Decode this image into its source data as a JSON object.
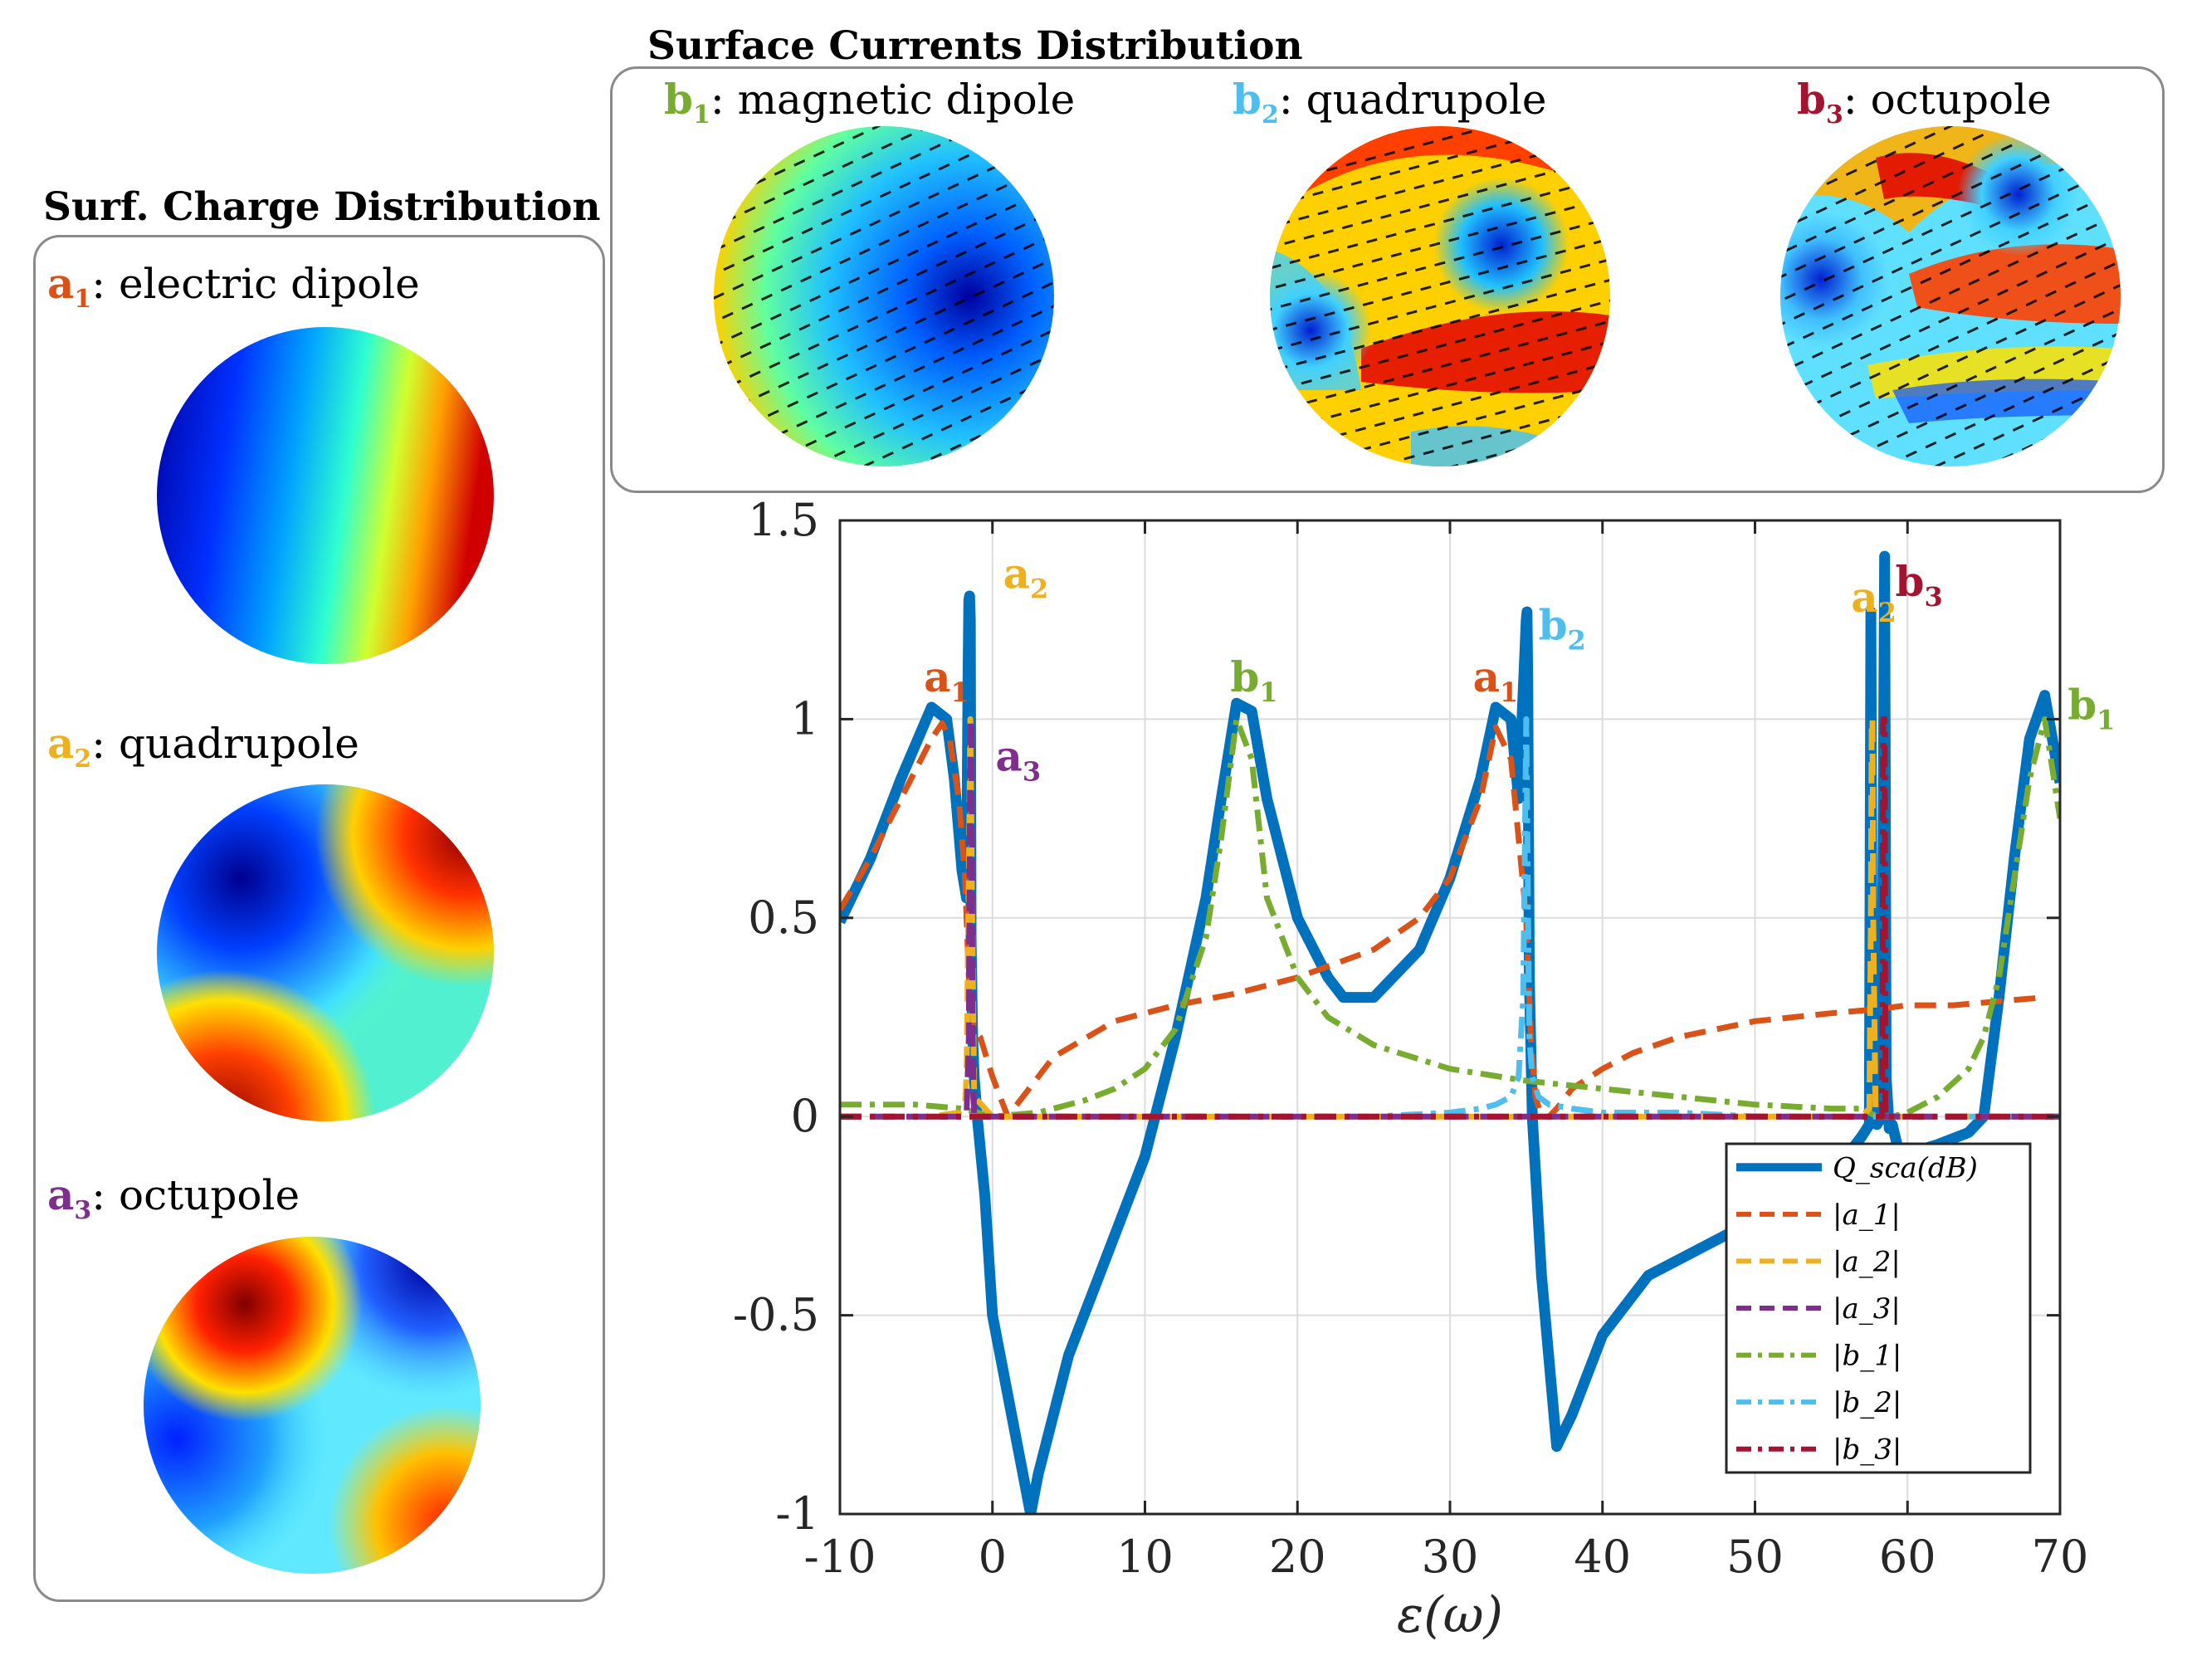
{
  "charge_panel": {
    "title": "Surf. Charge Distribution",
    "items": [
      {
        "sym": "a",
        "sub": "1",
        "desc": ": electric dipole",
        "color": "#d95319"
      },
      {
        "sym": "a",
        "sub": "2",
        "desc": ": quadrupole",
        "color": "#edb120"
      },
      {
        "sym": "a",
        "sub": "3",
        "desc": ": octupole",
        "color": "#7e2f8e"
      }
    ]
  },
  "current_panel": {
    "title": "Surface Currents Distribution",
    "items": [
      {
        "sym": "b",
        "sub": "1",
        "desc": ": magnetic dipole",
        "color": "#77ac30"
      },
      {
        "sym": "b",
        "sub": "2",
        "desc": ": quadrupole",
        "color": "#4dbeee"
      },
      {
        "sym": "b",
        "sub": "3",
        "desc": ": octupole",
        "color": "#a2142f"
      }
    ]
  },
  "chart_data": {
    "type": "line",
    "xlabel": "ε(ω)",
    "ylabel": "",
    "xlim": [
      -10,
      70
    ],
    "ylim": [
      -1,
      1.5
    ],
    "xticks": [
      "-10",
      "0",
      "10",
      "20",
      "30",
      "40",
      "50",
      "60",
      "70"
    ],
    "yticks": [
      "-1",
      "-0.5",
      "0",
      "0.5",
      "1",
      "1.5"
    ],
    "grid": true,
    "legend_position": "bottom-right",
    "series": [
      {
        "name": "Q_sca(dB)",
        "color": "#0072bd",
        "style": "solid",
        "x": [
          -10,
          -8,
          -6,
          -4,
          -3,
          -2.5,
          -2,
          -1.7,
          -1.6,
          -1.55,
          -1.5,
          -1.45,
          -1.4,
          -1.3,
          -1.2,
          -1.0,
          -0.5,
          0,
          2.5,
          3,
          5,
          8,
          10,
          12,
          14,
          15,
          16,
          17,
          18,
          20,
          22,
          23,
          25,
          28,
          30,
          32,
          33,
          34,
          34.5,
          35,
          35.05,
          35.1,
          35.2,
          35.4,
          36,
          37,
          38,
          40,
          43,
          47,
          50,
          53,
          55,
          56,
          57,
          57.5,
          57.6,
          57.7,
          58.0,
          58.3,
          58.5,
          58.6,
          58.8,
          59,
          59.5,
          62,
          64,
          65,
          66,
          67,
          68,
          69,
          69.5,
          70
        ],
        "y": [
          0.49,
          0.65,
          0.85,
          1.03,
          1.0,
          0.85,
          0.62,
          0.55,
          1.1,
          1.3,
          1.31,
          1.25,
          0.45,
          0.2,
          0.1,
          0.0,
          -0.2,
          -0.5,
          -1.0,
          -0.9,
          -0.6,
          -0.3,
          -0.1,
          0.2,
          0.55,
          0.8,
          1.04,
          1.02,
          0.8,
          0.5,
          0.35,
          0.3,
          0.3,
          0.42,
          0.6,
          0.85,
          1.03,
          1.0,
          0.8,
          1.25,
          1.27,
          1.1,
          0.35,
          0.0,
          -0.4,
          -0.83,
          -0.75,
          -0.55,
          -0.4,
          -0.32,
          -0.26,
          -0.2,
          -0.15,
          -0.1,
          -0.05,
          -0.02,
          1.27,
          0.1,
          -0.02,
          0.0,
          1.41,
          0.1,
          -0.03,
          -0.02,
          -0.1,
          -0.07,
          -0.04,
          0.0,
          0.3,
          0.65,
          0.95,
          1.06,
          0.95,
          0.84
        ]
      },
      {
        "name": "|a_1|",
        "color": "#d95319",
        "style": "dashed",
        "x": [
          -10,
          -8,
          -6,
          -4,
          -3.3,
          -2.8,
          -2.2,
          -1.8,
          -1.5,
          -1.2,
          -0.8,
          0,
          1,
          2,
          4,
          8,
          12,
          16,
          20,
          25,
          28,
          30,
          32,
          33,
          34,
          35,
          35.3,
          35.6,
          36,
          36.5,
          37,
          38,
          40,
          42,
          45,
          50,
          55,
          58,
          60,
          63,
          66,
          69
        ],
        "y": [
          0.52,
          0.65,
          0.8,
          0.95,
          0.99,
          0.95,
          0.8,
          0.6,
          0.3,
          0.22,
          0.2,
          0.1,
          0.0,
          0.05,
          0.15,
          0.24,
          0.28,
          0.31,
          0.35,
          0.42,
          0.5,
          0.6,
          0.8,
          0.98,
          0.9,
          0.5,
          0.2,
          0.05,
          0.0,
          0.0,
          0.02,
          0.07,
          0.12,
          0.16,
          0.2,
          0.24,
          0.26,
          0.27,
          0.28,
          0.28,
          0.29,
          0.3
        ]
      },
      {
        "name": "|a_2|",
        "color": "#edb120",
        "style": "dashed",
        "x": [
          -10,
          -4,
          -2.2,
          -1.8,
          -1.7,
          -1.55,
          -1.45,
          -1.35,
          -1.2,
          0,
          20,
          40,
          57,
          57.5,
          57.6,
          57.65,
          57.7,
          57.75,
          57.9,
          58.2,
          70
        ],
        "y": [
          0.0,
          0.0,
          0.01,
          0.03,
          0.1,
          0.6,
          1.0,
          0.6,
          0.05,
          0.0,
          0.0,
          0.0,
          0.0,
          0.02,
          0.5,
          1.0,
          1.0,
          0.5,
          0.02,
          0.0,
          0.0
        ]
      },
      {
        "name": "|a_3|",
        "color": "#7e2f8e",
        "style": "dashed",
        "x": [
          -10,
          -1.7,
          -1.55,
          -1.45,
          -1.38,
          -1.3,
          -1.2,
          70
        ],
        "y": [
          0.0,
          0.0,
          0.2,
          1.0,
          0.98,
          0.2,
          0.0,
          0.0
        ]
      },
      {
        "name": "|b_1|",
        "color": "#77ac30",
        "style": "dashdot",
        "x": [
          -10,
          -5,
          -2,
          0,
          3,
          6,
          8,
          10,
          12,
          14,
          15,
          16,
          17,
          18,
          20,
          22,
          25,
          30,
          35,
          40,
          45,
          50,
          55,
          57,
          58,
          59,
          60,
          62,
          64,
          65,
          66,
          67,
          68,
          69,
          70
        ],
        "y": [
          0.03,
          0.03,
          0.02,
          0.0,
          0.01,
          0.04,
          0.07,
          0.12,
          0.22,
          0.45,
          0.7,
          1.0,
          0.9,
          0.55,
          0.35,
          0.25,
          0.18,
          0.12,
          0.09,
          0.07,
          0.05,
          0.03,
          0.02,
          0.02,
          0.0,
          0.0,
          0.01,
          0.05,
          0.12,
          0.2,
          0.35,
          0.6,
          0.85,
          1.0,
          0.75
        ]
      },
      {
        "name": "|b_2|",
        "color": "#4dbeee",
        "style": "dashdot",
        "x": [
          -10,
          25,
          30,
          32,
          33,
          34,
          34.5,
          34.8,
          35.0,
          35.1,
          35.2,
          35.4,
          35.8,
          36.5,
          38,
          40,
          45,
          50,
          55,
          60,
          70
        ],
        "y": [
          0.0,
          0.0,
          0.01,
          0.02,
          0.03,
          0.05,
          0.1,
          0.3,
          1.0,
          0.6,
          0.2,
          0.1,
          0.05,
          0.03,
          0.02,
          0.01,
          0.01,
          0.0,
          0.0,
          0.0,
          0.0
        ]
      },
      {
        "name": "|b_3|",
        "color": "#a2142f",
        "style": "dashdot",
        "x": [
          -10,
          58.0,
          58.35,
          58.4,
          58.5,
          58.55,
          58.9,
          70
        ],
        "y": [
          0.0,
          0.0,
          0.0,
          1.0,
          1.0,
          0.0,
          0.0,
          0.0
        ]
      }
    ],
    "annotations": [
      {
        "sym": "a",
        "sub": "1",
        "x": -4.5,
        "y": 1.07,
        "color": "#d95319"
      },
      {
        "sym": "a",
        "sub": "2",
        "x": 0.7,
        "y": 1.33,
        "color": "#edb120"
      },
      {
        "sym": "a",
        "sub": "3",
        "x": 0.2,
        "y": 0.87,
        "color": "#7e2f8e"
      },
      {
        "sym": "b",
        "sub": "1",
        "x": 15.6,
        "y": 1.07,
        "color": "#77ac30"
      },
      {
        "sym": "b",
        "sub": "2",
        "x": 35.8,
        "y": 1.2,
        "color": "#4dbeee"
      },
      {
        "sym": "a",
        "sub": "1",
        "x": 31.5,
        "y": 1.07,
        "color": "#d95319"
      },
      {
        "sym": "a",
        "sub": "2",
        "x": 56.3,
        "y": 1.27,
        "color": "#edb120"
      },
      {
        "sym": "b",
        "sub": "3",
        "x": 59.2,
        "y": 1.31,
        "color": "#a2142f"
      },
      {
        "sym": "b",
        "sub": "1",
        "x": 70.5,
        "y": 1.0,
        "color": "#77ac30"
      }
    ]
  }
}
